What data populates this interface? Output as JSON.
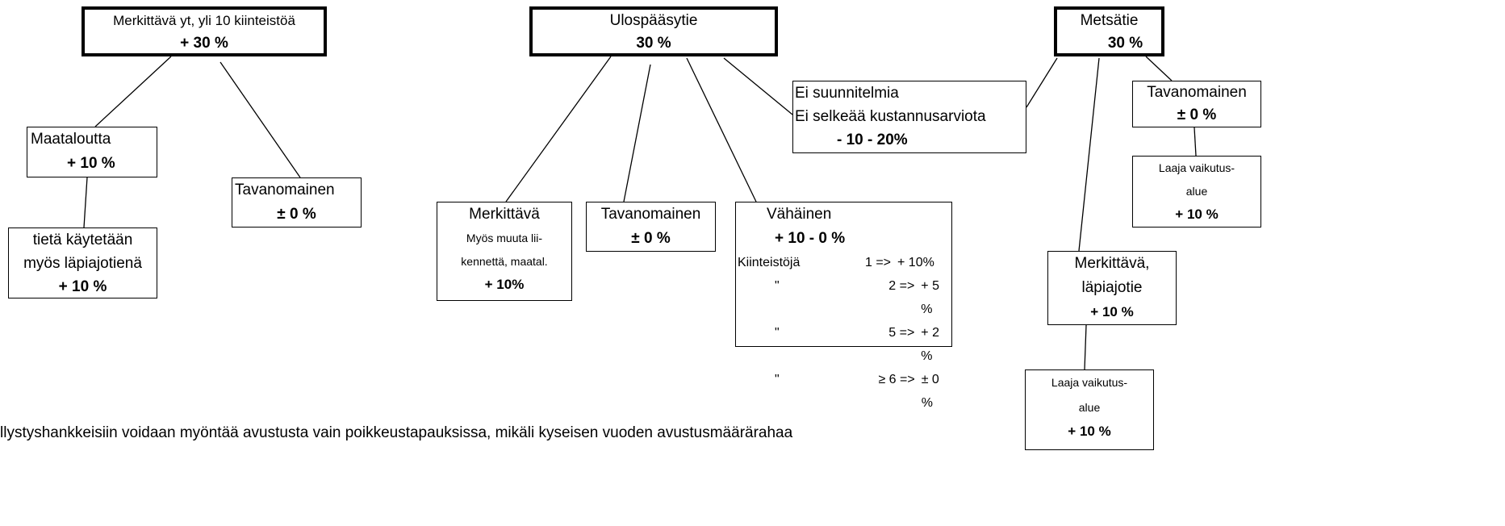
{
  "nodes": [
    {
      "lines": [
        "Merkittävä  yt, yli 10 kiinteistöä",
        "+ 30 %"
      ]
    },
    {
      "lines": [
        "Ulospääsytie",
        "30 %"
      ]
    },
    {
      "lines": [
        "Metsätie",
        "30 %"
      ]
    },
    {
      "lines": [
        "Ei suunnitelmia",
        "Ei selkeää kustannusarviota",
        "- 10 - 20%"
      ]
    },
    {
      "lines": [
        "Tavanomainen",
        "± 0 %"
      ]
    },
    {
      "lines": [
        "Laaja vaikutus-",
        "alue",
        "+ 10 %"
      ]
    },
    {
      "lines": [
        "Maataloutta",
        "+ 10 %"
      ]
    },
    {
      "lines": [
        "Tavanomainen",
        "± 0 %"
      ]
    },
    {
      "lines": [
        "tietä käytetään",
        "myös läpiajotienä",
        "+ 10 %"
      ]
    },
    {
      "lines": [
        "Merkittävä",
        "Myös muuta lii-",
        "kennettä, maatal.",
        "+ 10%"
      ]
    },
    {
      "lines": [
        "Tavanomainen",
        "± 0 %"
      ]
    },
    {
      "lines": [
        "Vähäinen",
        "+ 10 - 0 %"
      ],
      "table": [
        [
          "Kiinteistöjä",
          "1 =>",
          "+ 10%"
        ],
        [
          "\"",
          "2 =>",
          "+ 5 %"
        ],
        [
          "\"",
          "5 =>",
          "+ 2 %"
        ],
        [
          "\"",
          "≥  6 =>",
          "± 0 %"
        ]
      ]
    },
    {
      "lines": [
        "Merkittävä,",
        "läpiajotie",
        "+ 10 %"
      ]
    },
    {
      "lines": [
        "Laaja vaikutus-",
        "alue",
        "+ 10 %"
      ]
    }
  ],
  "footer": "llystyshankkeisiin voidaan myöntää avustusta vain poikkeustapauksissa, mikäli kyseisen vuoden avustusmäärärahaa"
}
